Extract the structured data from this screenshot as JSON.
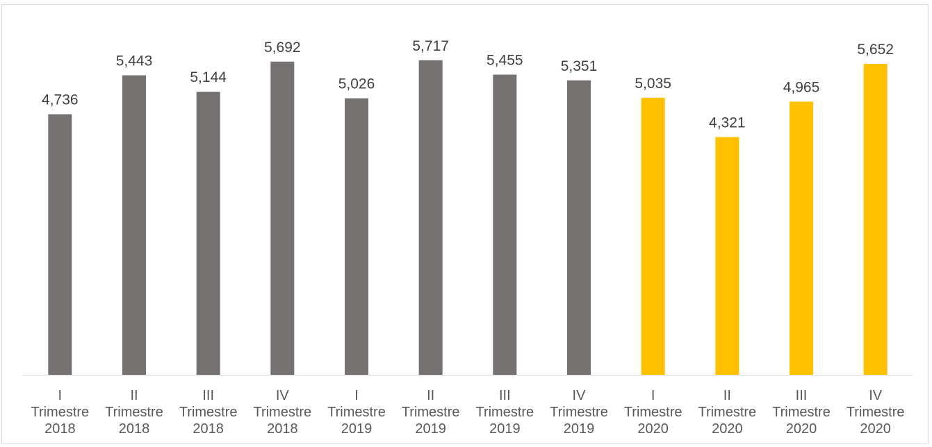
{
  "chart_data": {
    "type": "bar",
    "categories": [
      [
        "I",
        "Trimestre",
        "2018"
      ],
      [
        "II",
        "Trimestre",
        "2018"
      ],
      [
        "III",
        "Trimestre",
        "2018"
      ],
      [
        "IV",
        "Trimestre",
        "2018"
      ],
      [
        "I",
        "Trimestre",
        "2019"
      ],
      [
        "II",
        "Trimestre",
        "2019"
      ],
      [
        "III",
        "Trimestre",
        "2019"
      ],
      [
        "IV",
        "Trimestre",
        "2019"
      ],
      [
        "I",
        "Trimestre",
        "2020"
      ],
      [
        "II",
        "Trimestre",
        "2020"
      ],
      [
        "III",
        "Trimestre",
        "2020"
      ],
      [
        "IV",
        "Trimestre",
        "2020"
      ]
    ],
    "values": [
      4736,
      5443,
      5144,
      5692,
      5026,
      5717,
      5455,
      5351,
      5035,
      4321,
      4965,
      5652
    ],
    "value_labels": [
      "4,736",
      "5,443",
      "5,144",
      "5,692",
      "5,026",
      "5,717",
      "5,455",
      "5,351",
      "5,035",
      "4,321",
      "4,965",
      "5,652"
    ],
    "bar_colors": [
      "#767171",
      "#767171",
      "#767171",
      "#767171",
      "#767171",
      "#767171",
      "#767171",
      "#767171",
      "#FFC000",
      "#FFC000",
      "#FFC000",
      "#FFC000"
    ],
    "ylim": [
      0,
      6000
    ],
    "grid": false,
    "legend": "none",
    "title": "",
    "xlabel": "",
    "ylabel": ""
  },
  "colors": {
    "axis": "#d9d9d9",
    "frame": "#d9d9d9",
    "label": "#404040",
    "tick": "#595959"
  }
}
